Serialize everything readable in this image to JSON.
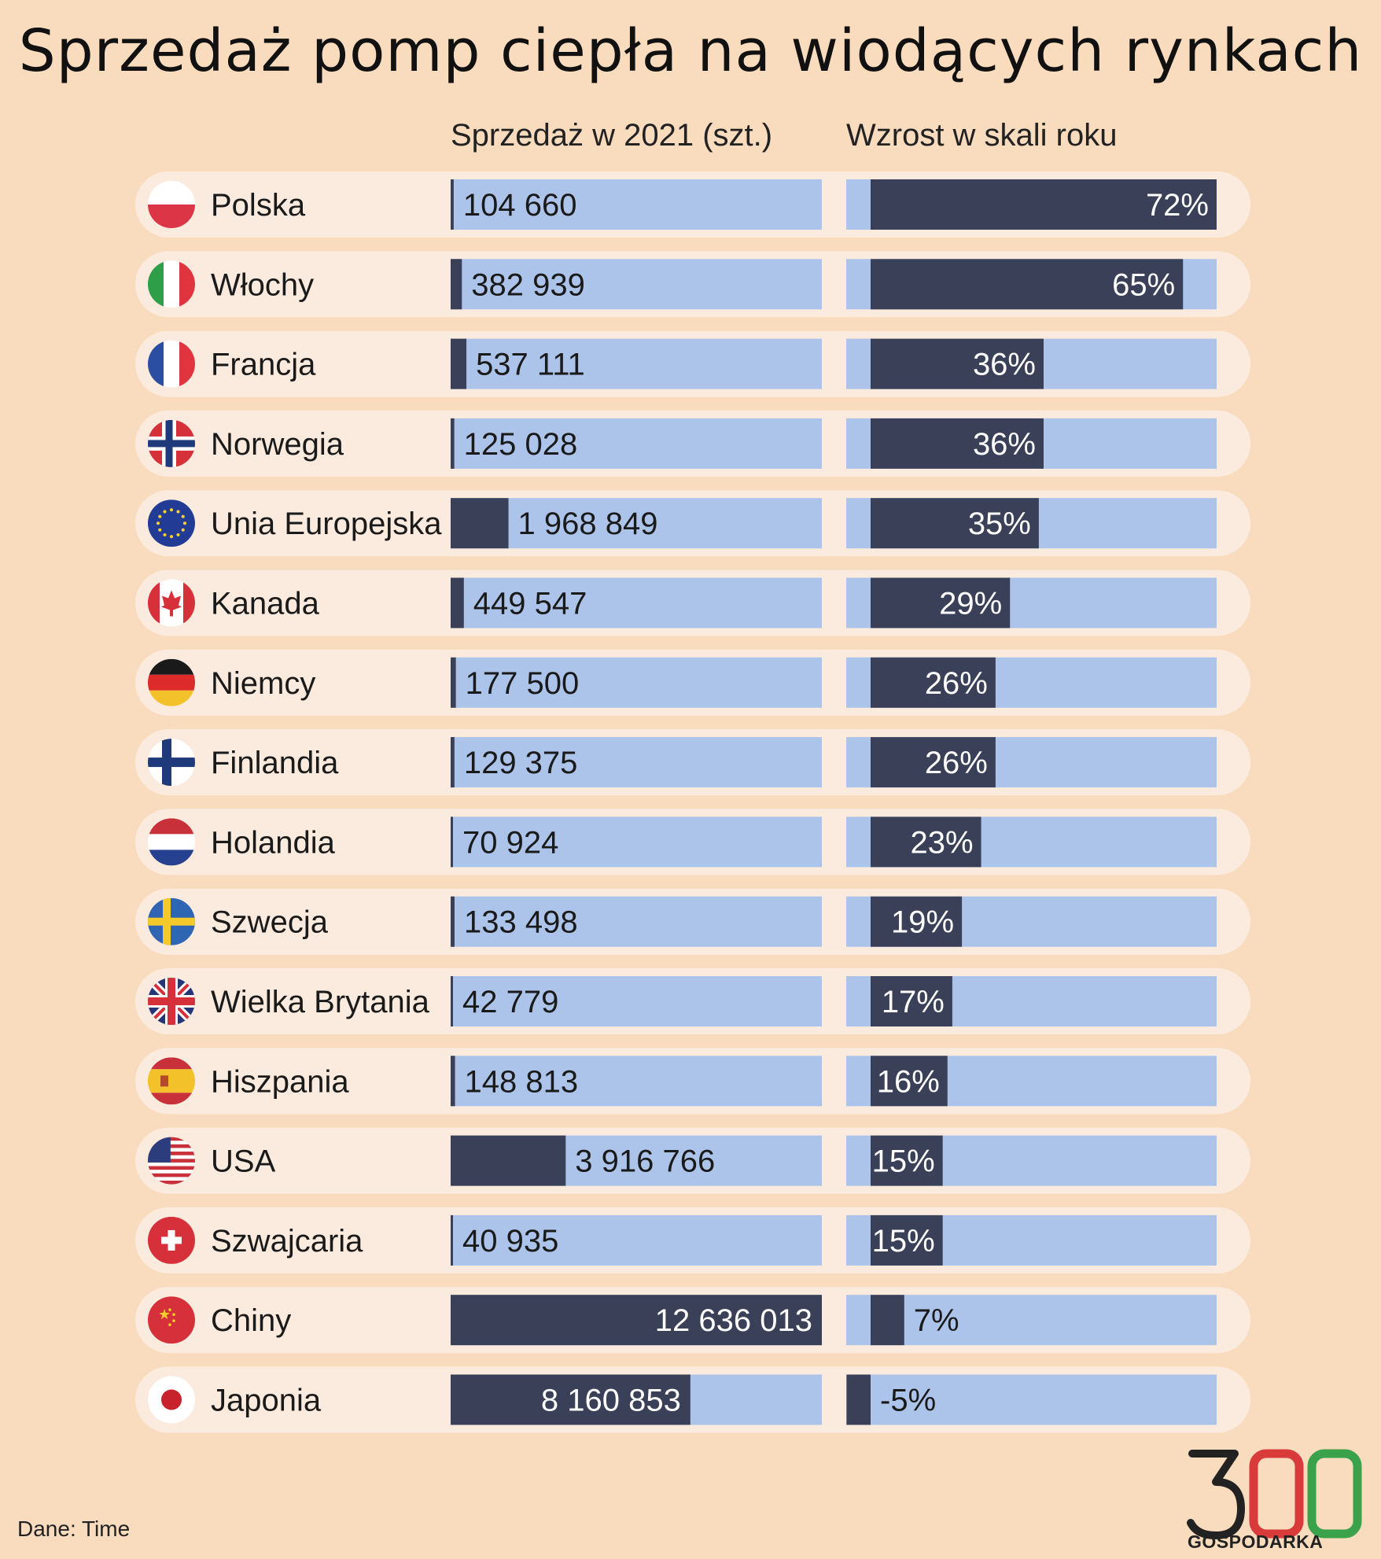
{
  "title": "Sprzedaż pomp ciepła na wiodących rynkach",
  "headers": {
    "sales": "Sprzedaż w 2021 (szt.)",
    "growth": "Wzrost w skali roku"
  },
  "source": "Dane: Time",
  "logo": {
    "number": "300",
    "name": "GOSPODARKA"
  },
  "colors": {
    "background": "#f9dbbe",
    "row": "#fbebde",
    "bar_track": "#acc4ea",
    "bar_fill": "#3a4058",
    "logo_red": "#d93a3a",
    "logo_green": "#3aa24a"
  },
  "chart_data": {
    "type": "bar",
    "categories": [
      "Polska",
      "Włochy",
      "Francja",
      "Norwegia",
      "Unia Europejska",
      "Kanada",
      "Niemcy",
      "Finlandia",
      "Holandia",
      "Szwecja",
      "Wielka Brytania",
      "Hiszpania",
      "USA",
      "Szwajcaria",
      "Chiny",
      "Japonia"
    ],
    "flags": [
      "poland-flag-icon",
      "italy-flag-icon",
      "france-flag-icon",
      "norway-flag-icon",
      "eu-flag-icon",
      "canada-flag-icon",
      "germany-flag-icon",
      "finland-flag-icon",
      "netherlands-flag-icon",
      "sweden-flag-icon",
      "uk-flag-icon",
      "spain-flag-icon",
      "usa-flag-icon",
      "switzerland-flag-icon",
      "china-flag-icon",
      "japan-flag-icon"
    ],
    "series": [
      {
        "name": "Sprzedaż w 2021 (szt.)",
        "values": [
          104660,
          382939,
          537111,
          125028,
          1968849,
          449547,
          177500,
          129375,
          70924,
          133498,
          42779,
          148813,
          3916766,
          40935,
          12636013,
          8160853
        ],
        "labels": [
          "104 660",
          "382 939",
          "537 111",
          "125 028",
          "1 968 849",
          "449 547",
          "177 500",
          "129 375",
          "70 924",
          "133 498",
          "42 779",
          "148 813",
          "3 916 766",
          "40 935",
          "12 636 013",
          "8 160 853"
        ]
      },
      {
        "name": "Wzrost w skali roku",
        "values": [
          72,
          65,
          36,
          36,
          35,
          29,
          26,
          26,
          23,
          19,
          17,
          16,
          15,
          15,
          7,
          -5
        ],
        "labels": [
          "72%",
          "65%",
          "36%",
          "36%",
          "35%",
          "29%",
          "26%",
          "26%",
          "23%",
          "19%",
          "17%",
          "16%",
          "15%",
          "15%",
          "7%",
          "-5%"
        ]
      }
    ]
  }
}
